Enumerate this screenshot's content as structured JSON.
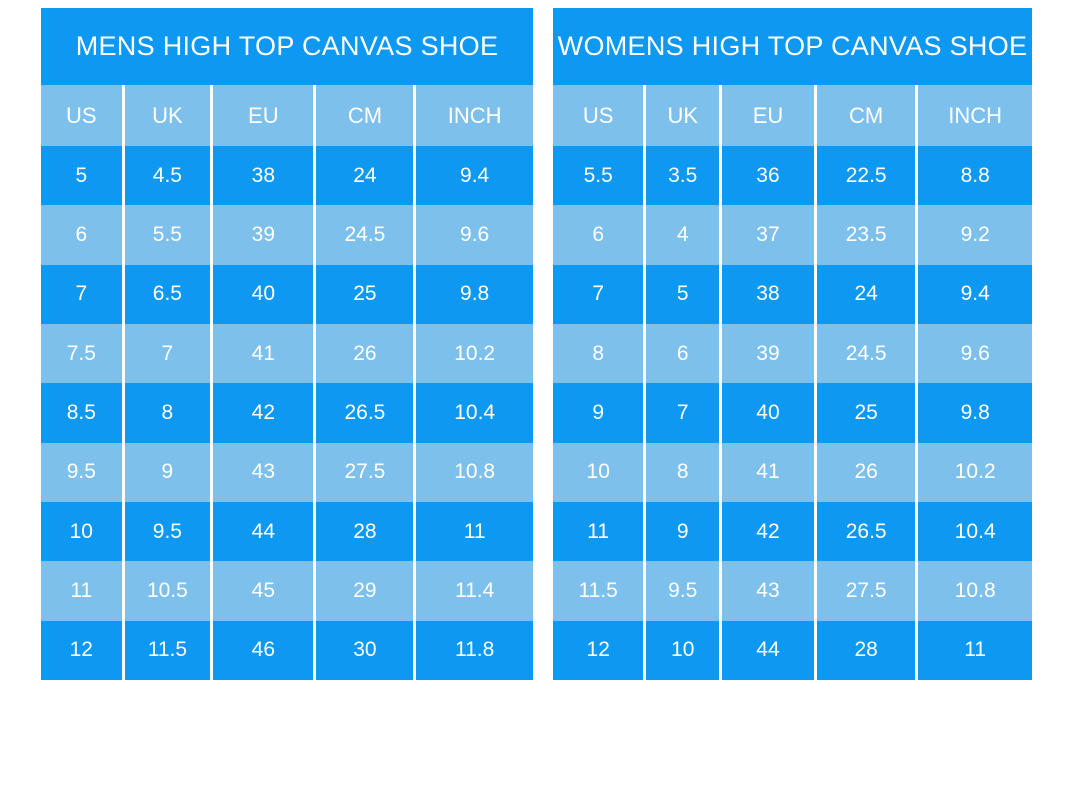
{
  "colors": {
    "primary_blue": "#0d98f2",
    "light_blue": "#7dc0ec",
    "separator_white": "#ffffff",
    "text": "#ffffff",
    "page_background": "#ffffff"
  },
  "chart_data": [
    {
      "type": "table",
      "id": "mens",
      "title": "MENS HIGH TOP CANVAS SHOE",
      "columns": [
        "US",
        "UK",
        "EU",
        "CM",
        "INCH"
      ],
      "rows": [
        [
          "5",
          "4.5",
          "38",
          "24",
          "9.4"
        ],
        [
          "6",
          "5.5",
          "39",
          "24.5",
          "9.6"
        ],
        [
          "7",
          "6.5",
          "40",
          "25",
          "9.8"
        ],
        [
          "7.5",
          "7",
          "41",
          "26",
          "10.2"
        ],
        [
          "8.5",
          "8",
          "42",
          "26.5",
          "10.4"
        ],
        [
          "9.5",
          "9",
          "43",
          "27.5",
          "10.8"
        ],
        [
          "10",
          "9.5",
          "44",
          "28",
          "11"
        ],
        [
          "11",
          "10.5",
          "45",
          "29",
          "11.4"
        ],
        [
          "12",
          "11.5",
          "46",
          "30",
          "11.8"
        ]
      ]
    },
    {
      "type": "table",
      "id": "womens",
      "title": "WOMENS HIGH TOP CANVAS SHOE",
      "columns": [
        "US",
        "UK",
        "EU",
        "CM",
        "INCH"
      ],
      "rows": [
        [
          "5.5",
          "3.5",
          "36",
          "22.5",
          "8.8"
        ],
        [
          "6",
          "4",
          "37",
          "23.5",
          "9.2"
        ],
        [
          "7",
          "5",
          "38",
          "24",
          "9.4"
        ],
        [
          "8",
          "6",
          "39",
          "24.5",
          "9.6"
        ],
        [
          "9",
          "7",
          "40",
          "25",
          "9.8"
        ],
        [
          "10",
          "8",
          "41",
          "26",
          "10.2"
        ],
        [
          "11",
          "9",
          "42",
          "26.5",
          "10.4"
        ],
        [
          "11.5",
          "9.5",
          "43",
          "27.5",
          "10.8"
        ],
        [
          "12",
          "10",
          "44",
          "28",
          "11"
        ]
      ]
    }
  ]
}
